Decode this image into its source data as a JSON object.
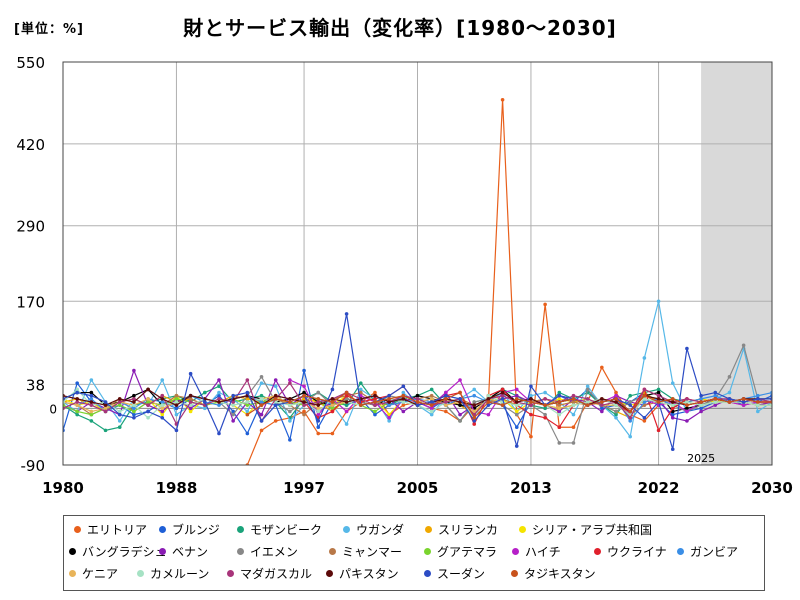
{
  "unit_label": "[単位：%]",
  "title": "財とサービス輸出（変化率）[1980～2030]",
  "forecast_label": "2025",
  "zero_label": "0",
  "chart_data": {
    "type": "line",
    "ylim": [
      -90,
      550
    ],
    "xlim": [
      1980,
      2030
    ],
    "yticks": [
      550,
      420,
      290,
      170,
      38,
      -90
    ],
    "xticks": [
      1980,
      1988,
      1997,
      2005,
      2013,
      2022,
      2030
    ],
    "forecast_start": 2025,
    "grid": true,
    "legend_position": "bottom",
    "x": [
      1980,
      1981,
      1982,
      1983,
      1984,
      1985,
      1986,
      1987,
      1988,
      1989,
      1990,
      1991,
      1992,
      1993,
      1994,
      1995,
      1996,
      1997,
      1998,
      1999,
      2000,
      2001,
      2002,
      2003,
      2004,
      2005,
      2006,
      2007,
      2008,
      2009,
      2010,
      2011,
      2012,
      2013,
      2014,
      2015,
      2016,
      2017,
      2018,
      2019,
      2020,
      2021,
      2022,
      2023,
      2024,
      2025,
      2026,
      2027,
      2028,
      2029,
      2030
    ],
    "series": [
      {
        "name": "エリトリア",
        "color": "#e8601c",
        "values": [
          null,
          null,
          null,
          null,
          null,
          null,
          null,
          null,
          null,
          null,
          null,
          null,
          null,
          -90,
          -35,
          -20,
          -15,
          -5,
          -40,
          -40,
          -5,
          10,
          25,
          -10,
          5,
          10,
          0,
          -5,
          -20,
          5,
          10,
          490,
          -10,
          -45,
          165,
          -30,
          -30,
          10,
          65,
          25,
          -10,
          -20,
          5,
          10,
          15,
          null,
          null,
          null,
          null,
          null,
          null
        ]
      },
      {
        "name": "ブルンジ",
        "color": "#1f5fd6",
        "values": [
          -35,
          40,
          10,
          -5,
          5,
          -10,
          -5,
          10,
          0,
          15,
          5,
          20,
          -5,
          -40,
          10,
          5,
          -50,
          60,
          -30,
          10,
          5,
          15,
          -10,
          5,
          20,
          10,
          0,
          15,
          5,
          5,
          15,
          5,
          -30,
          10,
          5,
          20,
          10,
          30,
          0,
          5,
          10,
          25,
          10,
          -10,
          -5,
          0,
          10,
          15,
          5,
          10,
          20
        ]
      },
      {
        "name": "モザンビーク",
        "color": "#1aa37a",
        "values": [
          5,
          -10,
          -20,
          -35,
          -30,
          5,
          10,
          15,
          20,
          10,
          25,
          35,
          10,
          15,
          20,
          10,
          -15,
          15,
          25,
          10,
          5,
          40,
          10,
          5,
          15,
          20,
          30,
          5,
          -20,
          10,
          15,
          30,
          20,
          5,
          0,
          25,
          15,
          25,
          5,
          -10,
          20,
          25,
          30,
          15,
          10,
          5,
          10,
          15,
          10,
          5,
          10
        ]
      },
      {
        "name": "ウガンダ",
        "color": "#56b8e8",
        "values": [
          10,
          -5,
          45,
          10,
          -20,
          15,
          5,
          45,
          -10,
          5,
          0,
          25,
          15,
          -5,
          40,
          35,
          -20,
          5,
          10,
          5,
          -25,
          30,
          15,
          -20,
          25,
          5,
          -10,
          20,
          15,
          30,
          10,
          25,
          -5,
          20,
          25,
          10,
          -10,
          35,
          5,
          -15,
          -45,
          80,
          170,
          40,
          -5,
          10,
          15,
          25,
          95,
          -5,
          10
        ]
      },
      {
        "name": "スリランカ",
        "color": "#f0a800",
        "values": [
          10,
          15,
          5,
          -5,
          10,
          15,
          5,
          20,
          10,
          15,
          5,
          10,
          20,
          15,
          10,
          20,
          5,
          15,
          10,
          -5,
          15,
          10,
          5,
          10,
          15,
          5,
          10,
          15,
          5,
          -10,
          20,
          15,
          5,
          10,
          15,
          5,
          10,
          15,
          5,
          -5,
          -15,
          25,
          10,
          5,
          10,
          15,
          10,
          15,
          10,
          5,
          10
        ]
      },
      {
        "name": "シリア・アラブ共和国",
        "color": "#f5e400",
        "values": [
          15,
          5,
          10,
          -5,
          10,
          5,
          15,
          -10,
          20,
          -5,
          15,
          10,
          5,
          -10,
          15,
          20,
          5,
          10,
          15,
          5,
          20,
          10,
          15,
          -10,
          15,
          10,
          5,
          15,
          10,
          5,
          10,
          15,
          -5,
          10,
          5,
          15,
          10,
          5,
          15,
          10,
          5,
          10,
          15,
          5,
          10,
          15,
          10,
          15,
          10,
          5,
          10
        ]
      },
      {
        "name": "バングラデシュ",
        "color": "#000000",
        "values": [
          15,
          25,
          25,
          5,
          10,
          20,
          30,
          5,
          10,
          20,
          15,
          10,
          15,
          20,
          15,
          10,
          15,
          25,
          10,
          5,
          15,
          10,
          5,
          15,
          10,
          20,
          15,
          10,
          5,
          0,
          15,
          30,
          10,
          15,
          5,
          10,
          15,
          5,
          10,
          15,
          -5,
          20,
          25,
          -5,
          0,
          5,
          15,
          10,
          15,
          10,
          10
        ]
      },
      {
        "name": "ベナン",
        "color": "#8a1cb4",
        "values": [
          5,
          -5,
          10,
          0,
          -10,
          60,
          5,
          -5,
          15,
          0,
          15,
          45,
          -20,
          10,
          -10,
          45,
          5,
          20,
          -5,
          10,
          25,
          5,
          10,
          15,
          -5,
          10,
          5,
          25,
          -10,
          5,
          10,
          15,
          20,
          10,
          5,
          -5,
          15,
          10,
          -5,
          20,
          10,
          5,
          15,
          -15,
          -20,
          -5,
          5,
          15,
          10,
          5,
          10
        ]
      },
      {
        "name": "イエメン",
        "color": "#888888",
        "values": [
          null,
          null,
          null,
          null,
          null,
          null,
          null,
          null,
          null,
          null,
          15,
          10,
          -10,
          20,
          50,
          10,
          -5,
          10,
          25,
          5,
          15,
          10,
          5,
          20,
          15,
          10,
          15,
          5,
          -20,
          10,
          15,
          5,
          -10,
          5,
          -10,
          -55,
          -55,
          30,
          5,
          -5,
          10,
          20,
          15,
          5,
          -5,
          5,
          15,
          50,
          100,
          15,
          10
        ]
      },
      {
        "name": "ミャンマー",
        "color": "#b87848",
        "values": [
          10,
          5,
          -10,
          0,
          15,
          -5,
          10,
          5,
          20,
          15,
          5,
          10,
          15,
          20,
          10,
          15,
          5,
          -10,
          10,
          15,
          20,
          25,
          10,
          5,
          10,
          15,
          20,
          10,
          15,
          5,
          10,
          15,
          5,
          10,
          15,
          5,
          10,
          5,
          15,
          10,
          -10,
          5,
          10,
          15,
          5,
          10,
          15,
          10,
          5,
          10,
          10
        ]
      },
      {
        "name": "グアテマラ",
        "color": "#7ad42e",
        "values": [
          5,
          -5,
          -10,
          0,
          5,
          -5,
          10,
          5,
          15,
          10,
          5,
          10,
          15,
          5,
          10,
          15,
          10,
          5,
          10,
          0,
          10,
          5,
          -5,
          10,
          15,
          10,
          5,
          10,
          15,
          -10,
          15,
          10,
          5,
          10,
          5,
          0,
          5,
          10,
          5,
          5,
          -10,
          15,
          10,
          5,
          10,
          5,
          10,
          10,
          10,
          5,
          5
        ]
      },
      {
        "name": "ハイチ",
        "color": "#b620c8",
        "values": [
          null,
          null,
          null,
          null,
          null,
          null,
          null,
          null,
          null,
          null,
          null,
          null,
          null,
          null,
          null,
          null,
          45,
          35,
          -10,
          15,
          -5,
          20,
          10,
          -15,
          15,
          10,
          0,
          25,
          45,
          -5,
          -10,
          25,
          30,
          10,
          5,
          20,
          15,
          5,
          10,
          20,
          -10,
          15,
          5,
          10,
          -5,
          10,
          15,
          10,
          5,
          10,
          10
        ]
      },
      {
        "name": "ウクライナ",
        "color": "#e0202c",
        "values": [
          null,
          null,
          null,
          null,
          null,
          null,
          null,
          null,
          null,
          null,
          null,
          null,
          null,
          null,
          null,
          null,
          null,
          10,
          -15,
          -5,
          20,
          10,
          15,
          20,
          35,
          5,
          10,
          20,
          25,
          -25,
          20,
          30,
          5,
          -10,
          -15,
          -30,
          5,
          10,
          15,
          5,
          -5,
          30,
          -35,
          0,
          15,
          10,
          15,
          10,
          15,
          10,
          10
        ]
      },
      {
        "name": "ガンビア",
        "color": "#3a8ee6",
        "values": [
          10,
          5,
          15,
          -5,
          10,
          0,
          15,
          10,
          5,
          20,
          10,
          5,
          15,
          20,
          10,
          5,
          10,
          20,
          15,
          5,
          10,
          15,
          20,
          5,
          10,
          15,
          10,
          5,
          15,
          20,
          10,
          5,
          15,
          10,
          5,
          10,
          15,
          5,
          10,
          15,
          -20,
          10,
          15,
          5,
          10,
          15,
          20,
          10,
          15,
          20,
          25
        ]
      },
      {
        "name": "ケニア",
        "color": "#e8b45a",
        "values": [
          10,
          5,
          -5,
          0,
          10,
          5,
          15,
          0,
          10,
          5,
          15,
          10,
          5,
          10,
          15,
          20,
          5,
          10,
          0,
          5,
          10,
          5,
          10,
          15,
          20,
          10,
          15,
          5,
          10,
          -5,
          15,
          10,
          5,
          10,
          5,
          0,
          5,
          10,
          5,
          5,
          -10,
          15,
          10,
          5,
          10,
          5,
          10,
          10,
          10,
          5,
          5
        ]
      },
      {
        "name": "カメルーン",
        "color": "#a6e2c4",
        "values": [
          10,
          30,
          5,
          10,
          -5,
          5,
          -15,
          5,
          10,
          5,
          15,
          10,
          5,
          10,
          15,
          10,
          5,
          10,
          -5,
          15,
          10,
          5,
          10,
          15,
          10,
          5,
          -5,
          10,
          15,
          -15,
          20,
          10,
          5,
          10,
          5,
          -10,
          5,
          10,
          15,
          5,
          -10,
          15,
          10,
          5,
          10,
          5,
          10,
          10,
          10,
          5,
          5
        ]
      },
      {
        "name": "マダガスカル",
        "color": "#a8347a",
        "values": [
          0,
          10,
          5,
          -5,
          10,
          15,
          5,
          20,
          -25,
          10,
          5,
          15,
          10,
          45,
          -20,
          15,
          40,
          5,
          10,
          15,
          25,
          15,
          5,
          10,
          20,
          15,
          5,
          10,
          15,
          -10,
          15,
          20,
          10,
          5,
          15,
          10,
          20,
          15,
          5,
          10,
          -15,
          30,
          20,
          10,
          15,
          10,
          15,
          15,
          10,
          15,
          10
        ]
      },
      {
        "name": "パキスタン",
        "color": "#5c0a0a",
        "values": [
          20,
          15,
          10,
          5,
          15,
          10,
          30,
          15,
          5,
          20,
          15,
          10,
          15,
          20,
          5,
          20,
          15,
          10,
          5,
          15,
          10,
          15,
          20,
          10,
          15,
          5,
          10,
          15,
          10,
          5,
          15,
          25,
          10,
          15,
          5,
          10,
          15,
          5,
          15,
          10,
          -5,
          20,
          15,
          10,
          5,
          10,
          15,
          10,
          15,
          15,
          15
        ]
      },
      {
        "name": "スーダン",
        "color": "#2c4cc4",
        "values": [
          15,
          25,
          20,
          10,
          -10,
          -15,
          -5,
          -15,
          -35,
          55,
          10,
          -40,
          20,
          25,
          -20,
          5,
          10,
          20,
          -20,
          30,
          150,
          5,
          10,
          20,
          35,
          5,
          10,
          20,
          15,
          -20,
          5,
          15,
          -60,
          35,
          5,
          20,
          15,
          5,
          10,
          15,
          5,
          -15,
          10,
          -65,
          95,
          20,
          25,
          15,
          10,
          15,
          15
        ]
      },
      {
        "name": "タジキスタン",
        "color": "#c8521c",
        "values": [
          null,
          null,
          null,
          null,
          null,
          null,
          null,
          null,
          null,
          null,
          null,
          null,
          null,
          -10,
          5,
          15,
          10,
          20,
          15,
          10,
          25,
          5,
          10,
          15,
          20,
          10,
          5,
          15,
          25,
          -15,
          10,
          5,
          15,
          10,
          5,
          10,
          15,
          5,
          10,
          15,
          -5,
          20,
          10,
          15,
          5,
          10,
          15,
          10,
          15,
          10,
          10
        ]
      }
    ]
  }
}
